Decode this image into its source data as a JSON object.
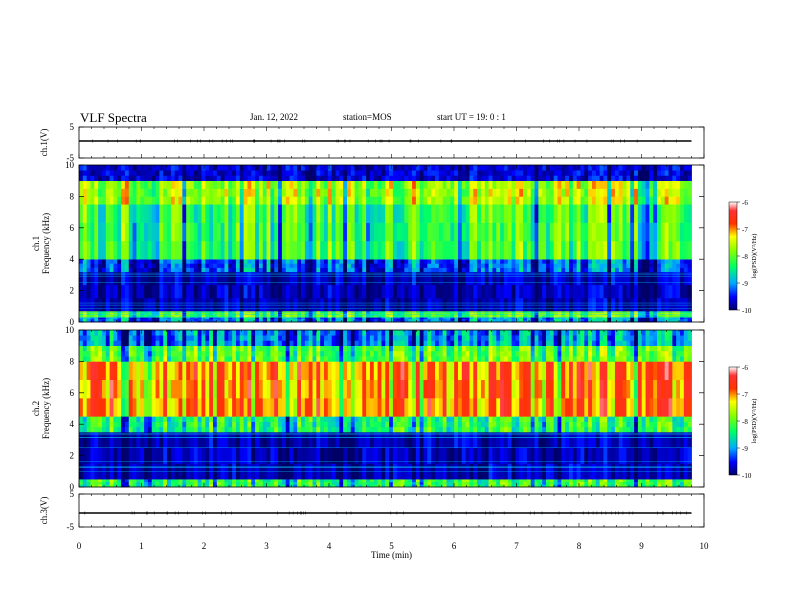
{
  "header": {
    "title": "VLF Spectra",
    "date": "Jan. 12, 2022",
    "station": "station=MOS",
    "start": "start UT =  19: 0 : 1"
  },
  "colorbar": {
    "label": "log(PSD)(V²/Hz)",
    "ticks": [
      "-6",
      "-7",
      "-8",
      "-9",
      "-10"
    ]
  },
  "chart_data": [
    {
      "type": "line",
      "name": "ch1-waveform",
      "ylabel": "ch.1(V)",
      "ylim": [
        -5,
        5
      ],
      "yticks": [
        "5",
        "-5"
      ],
      "xlim": [
        0,
        10
      ],
      "x": [
        0,
        9.8
      ],
      "y": [
        0,
        0
      ]
    },
    {
      "type": "heatmap",
      "name": "ch1-spectrogram",
      "ylabel": "ch.1\nFrequency (kHz)",
      "ylim": [
        0,
        10
      ],
      "yticks": [
        "0",
        "2",
        "4",
        "6",
        "8",
        "10"
      ],
      "xlim": [
        0,
        9.8
      ],
      "zlim": [
        -10,
        -6
      ],
      "bands": [
        {
          "f0": 0.0,
          "f1": 0.3,
          "level": -9.0
        },
        {
          "f0": 0.3,
          "f1": 0.7,
          "level": -8.0
        },
        {
          "f0": 0.7,
          "f1": 3.2,
          "level": -9.7
        },
        {
          "f0": 3.2,
          "f1": 4.0,
          "level": -9.2
        },
        {
          "f0": 4.0,
          "f1": 7.5,
          "level": -8.1
        },
        {
          "f0": 7.5,
          "f1": 9.0,
          "level": -7.6
        },
        {
          "f0": 9.0,
          "f1": 10.0,
          "level": -9.6
        }
      ]
    },
    {
      "type": "heatmap",
      "name": "ch2-spectrogram",
      "ylabel": "ch.2\nFrequency (kHz)",
      "ylim": [
        0,
        10
      ],
      "yticks": [
        "0",
        "2",
        "4",
        "6",
        "8",
        "10"
      ],
      "xlim": [
        0,
        9.8
      ],
      "zlim": [
        -10,
        -6
      ],
      "bands": [
        {
          "f0": 0.0,
          "f1": 0.5,
          "level": -8.2
        },
        {
          "f0": 0.5,
          "f1": 3.5,
          "level": -9.7
        },
        {
          "f0": 3.5,
          "f1": 4.5,
          "level": -8.3
        },
        {
          "f0": 4.5,
          "f1": 8.0,
          "level": -6.9
        },
        {
          "f0": 8.0,
          "f1": 9.0,
          "level": -8.0
        },
        {
          "f0": 9.0,
          "f1": 10.0,
          "level": -9.0
        }
      ]
    },
    {
      "type": "line",
      "name": "ch3-waveform",
      "ylabel": "ch.3(V)",
      "ylim": [
        -5,
        5
      ],
      "yticks": [
        "5",
        "-5"
      ],
      "xlim": [
        0,
        10
      ],
      "x": [
        0,
        9.8
      ],
      "y": [
        0,
        0
      ]
    }
  ],
  "xaxis": {
    "label": "Time (min)",
    "ticks": [
      "0",
      "1",
      "2",
      "3",
      "4",
      "5",
      "6",
      "7",
      "8",
      "9",
      "10"
    ]
  }
}
